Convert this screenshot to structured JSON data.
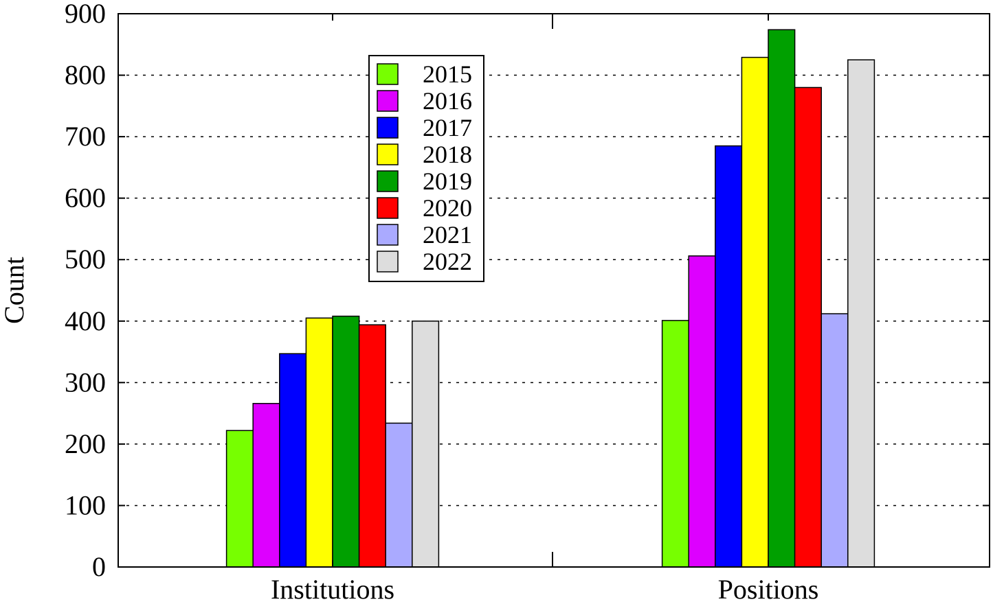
{
  "chart_data": {
    "type": "bar",
    "title": "",
    "xlabel": "",
    "ylabel": "Count",
    "ylim": [
      0,
      900
    ],
    "yticks": [
      0,
      100,
      200,
      300,
      400,
      500,
      600,
      700,
      800,
      900
    ],
    "grid": "horizontal dashed",
    "legend_position": "upper-left-center",
    "categories": [
      "Institutions",
      "Positions"
    ],
    "series": [
      {
        "name": "2015",
        "color": "#77ff00",
        "values": [
          222,
          401
        ]
      },
      {
        "name": "2016",
        "color": "#dd00ff",
        "values": [
          266,
          506
        ]
      },
      {
        "name": "2017",
        "color": "#0000ff",
        "values": [
          347,
          685
        ]
      },
      {
        "name": "2018",
        "color": "#ffff00",
        "values": [
          405,
          829
        ]
      },
      {
        "name": "2019",
        "color": "#00a000",
        "values": [
          408,
          874
        ]
      },
      {
        "name": "2020",
        "color": "#ff0000",
        "values": [
          394,
          780
        ]
      },
      {
        "name": "2021",
        "color": "#aaaaff",
        "values": [
          234,
          412
        ]
      },
      {
        "name": "2022",
        "color": "#dddddd",
        "values": [
          400,
          825
        ]
      }
    ]
  }
}
